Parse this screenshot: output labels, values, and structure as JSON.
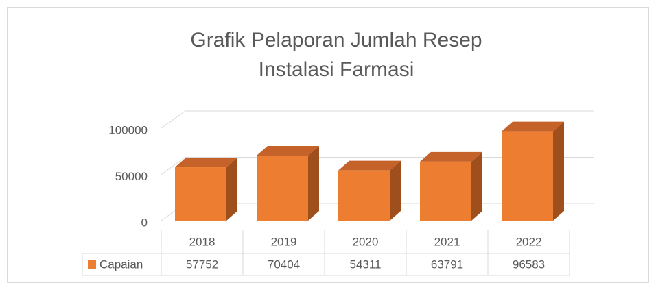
{
  "chart_data": {
    "type": "bar3d",
    "title": [
      "Grafik Pelaporan Jumlah Resep",
      "Instalasi Farmasi"
    ],
    "categories": [
      "2018",
      "2019",
      "2020",
      "2021",
      "2022"
    ],
    "series": [
      {
        "name": "Capaian",
        "color": "#ed7d31",
        "values": [
          57752,
          70404,
          54311,
          63791,
          96583
        ]
      }
    ],
    "ylim": [
      0,
      100000
    ],
    "yticks": [
      0,
      50000,
      100000
    ],
    "grid": true,
    "data_table": true
  }
}
